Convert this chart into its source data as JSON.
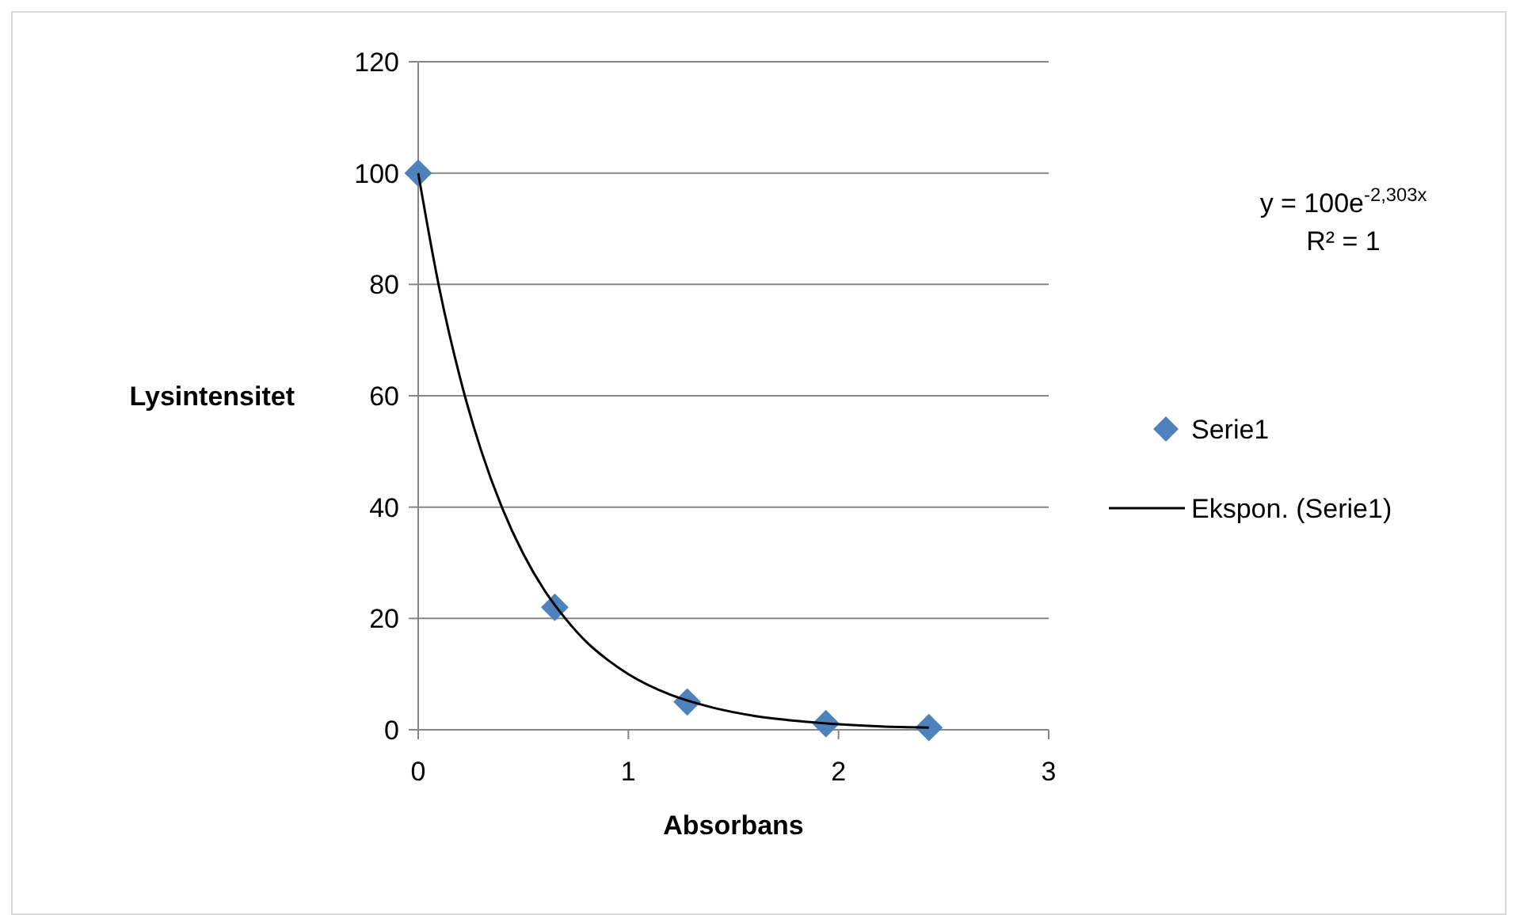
{
  "chart_data": {
    "type": "scatter",
    "xlabel": "Absorbans",
    "ylabel": "Lysintensitet",
    "xlim": [
      0,
      3
    ],
    "xticks": [
      0,
      1,
      2,
      3
    ],
    "ylim": [
      0,
      120
    ],
    "yticks": [
      0,
      20,
      40,
      60,
      80,
      100,
      120
    ],
    "grid": "y",
    "legend": "right",
    "annotations": [
      "y = 100e$^{-2,303x}$",
      "R² = 1"
    ],
    "series": [
      {
        "name": "Serie1",
        "marker": "diamond",
        "color": "#4f81bd",
        "x": [
          0,
          0.65,
          1.28,
          1.94,
          2.43
        ],
        "values": [
          100,
          22,
          5,
          1.1,
          0.4
        ]
      },
      {
        "name": "Ekspon. (Serie1)",
        "type": "line",
        "marker": "none",
        "line_style": "solid",
        "color": "#000000",
        "x": [
          0,
          0.1,
          0.2,
          0.3,
          0.4,
          0.5,
          0.6,
          0.7,
          0.8,
          0.9,
          1.0,
          1.2,
          1.4,
          1.6,
          1.8,
          2.0,
          2.2,
          2.43
        ],
        "values": [
          100,
          79.4,
          63.1,
          50.1,
          39.8,
          31.6,
          25.1,
          20.0,
          15.8,
          12.6,
          10,
          6.3,
          4.0,
          2.5,
          1.6,
          1.0,
          0.6,
          0.4
        ]
      }
    ]
  }
}
